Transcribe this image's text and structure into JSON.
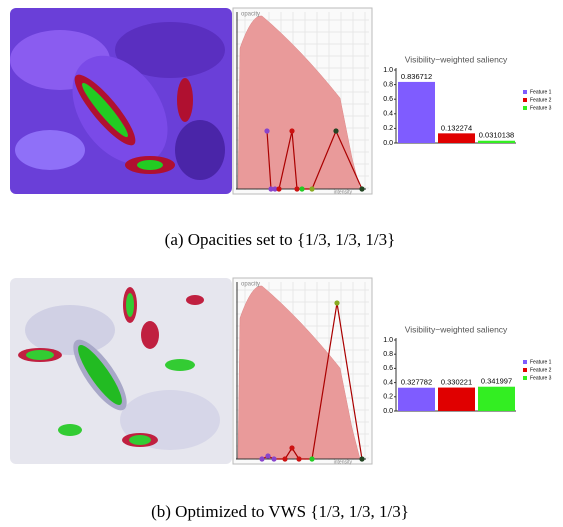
{
  "chart_data": [
    {
      "type": "bar",
      "title": "Visibility−weighted saliency",
      "categories": [
        null
      ],
      "series": [
        {
          "name": "Feature 1",
          "color": "#7f5cff",
          "values": [
            0.836712
          ]
        },
        {
          "name": "Feature 2",
          "color": "#e00000",
          "values": [
            0.132274
          ]
        },
        {
          "name": "Feature 3",
          "color": "#33ee22",
          "values": [
            0.0310138
          ]
        }
      ],
      "ylim": [
        0,
        1
      ],
      "yticks": [
        {
          "value": 0,
          "label": "0.0"
        },
        0.2,
        0.4,
        0.6,
        0.8,
        {
          "value": 1,
          "label": "1.0"
        }
      ],
      "legend": "right"
    },
    {
      "type": "bar",
      "title": "Visibility−weighted saliency",
      "categories": [
        null
      ],
      "series": [
        {
          "name": "Feature 1",
          "color": "#7f5cff",
          "values": [
            0.327782
          ]
        },
        {
          "name": "Feature 2",
          "color": "#e00000",
          "values": [
            0.330221
          ]
        },
        {
          "name": "Feature 3",
          "color": "#33ee22",
          "values": [
            0.341997
          ]
        }
      ],
      "ylim": [
        0,
        1
      ],
      "yticks": [
        {
          "value": 0,
          "label": "0.0"
        },
        0.2,
        0.4,
        0.6,
        0.8,
        {
          "value": 1,
          "label": "1.0"
        }
      ],
      "legend": "right"
    }
  ],
  "panels": [
    {
      "tf_y_label": "opacity",
      "tf_x_label": "intensity",
      "caption": "(a) Opacities set to {1/3, 1/3, 1/3}"
    },
    {
      "tf_y_label": "opacity",
      "tf_x_label": "intensity",
      "caption": "(b) Optimized to VWS {1/3, 1/3, 1/3}"
    }
  ]
}
